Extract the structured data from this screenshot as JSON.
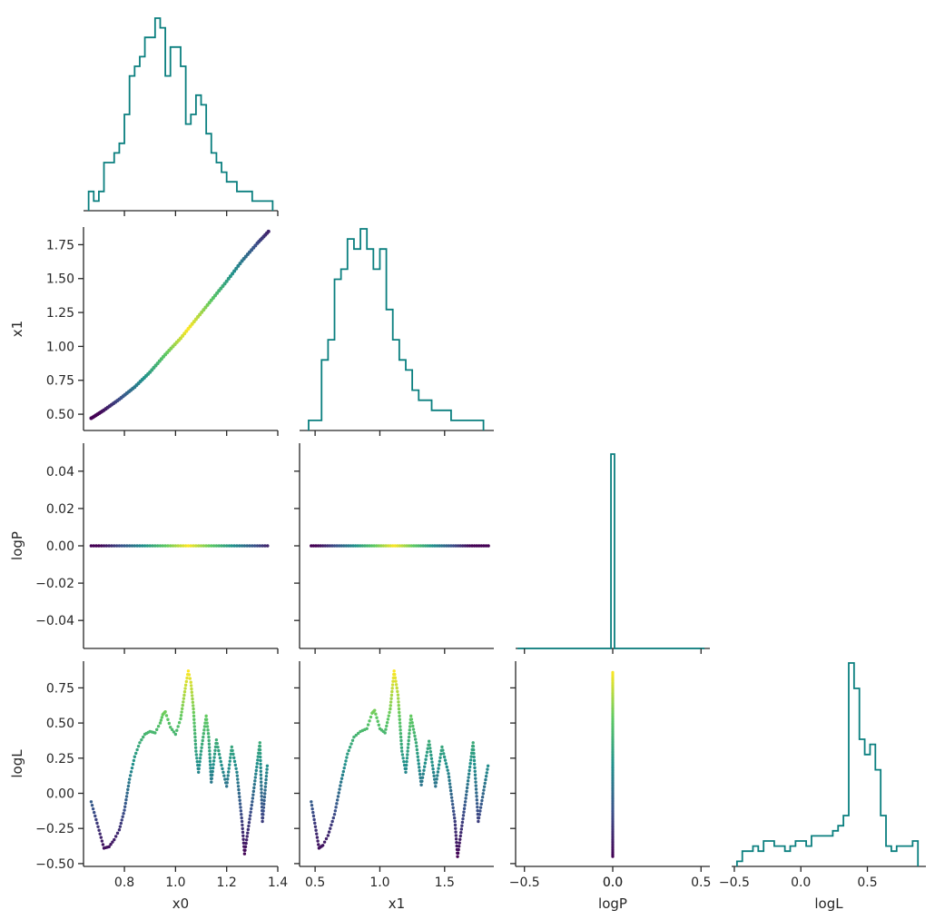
{
  "chart_data": {
    "type": "corner",
    "parameters": [
      "x0",
      "x1",
      "logP",
      "logL"
    ],
    "colors": {
      "histogram": "#0a7f7f",
      "colormap": "viridis",
      "axes": "#262626"
    },
    "ranges": {
      "x0": [
        0.64,
        1.4
      ],
      "x1": [
        0.38,
        1.88
      ],
      "logP": [
        -0.055,
        0.055
      ],
      "logL": [
        -0.52,
        0.94
      ]
    },
    "ticks": {
      "x0": {
        "values": [
          0.8,
          1.0,
          1.2,
          1.4
        ],
        "labels": [
          "0.8",
          "1.0",
          "1.2",
          "1.4"
        ]
      },
      "x1_x": {
        "values": [
          0.5,
          1.0,
          1.5
        ],
        "labels": [
          "0.5",
          "1.0",
          "1.5"
        ]
      },
      "x1_y": {
        "values": [
          0.5,
          0.75,
          1.0,
          1.25,
          1.5,
          1.75
        ],
        "labels": [
          "0.50",
          "0.75",
          "1.00",
          "1.25",
          "1.50",
          "1.75"
        ]
      },
      "logP_x": {
        "values": [
          -0.5,
          0.0,
          0.5
        ],
        "labels": [
          "−0.5",
          "0.0",
          "0.5"
        ]
      },
      "logP_y": {
        "values": [
          -0.04,
          -0.02,
          0.0,
          0.02,
          0.04
        ],
        "labels": [
          "−0.04",
          "−0.02",
          "0.00",
          "0.02",
          "0.04"
        ]
      },
      "logL_x": {
        "values": [
          -0.5,
          0.0,
          0.5
        ],
        "labels": [
          "−0.5",
          "0.0",
          "0.5"
        ]
      },
      "logL_y": {
        "values": [
          -0.5,
          -0.25,
          0.0,
          0.25,
          0.5,
          0.75
        ],
        "labels": [
          "−0.50",
          "−0.25",
          "0.00",
          "0.25",
          "0.50",
          "0.75"
        ]
      }
    },
    "axis_labels": {
      "bottom": [
        "x0",
        "x1",
        "logP",
        "logL"
      ],
      "left": [
        "x1",
        "logP",
        "logL"
      ]
    },
    "hist_x0": {
      "edges": [
        0.66,
        0.68,
        0.7,
        0.72,
        0.74,
        0.76,
        0.78,
        0.8,
        0.82,
        0.84,
        0.86,
        0.88,
        0.9,
        0.92,
        0.94,
        0.96,
        0.98,
        1.0,
        1.02,
        1.04,
        1.06,
        1.08,
        1.1,
        1.12,
        1.14,
        1.16,
        1.18,
        1.2,
        1.22,
        1.24,
        1.26,
        1.28,
        1.3,
        1.32,
        1.34,
        1.36,
        1.38
      ],
      "heights": [
        2,
        1,
        2,
        5,
        5,
        6,
        7,
        10,
        14,
        15,
        16,
        18,
        18,
        20,
        19,
        14,
        17,
        17,
        15,
        9,
        10,
        12,
        11,
        8,
        6,
        5,
        4,
        3,
        3,
        2,
        2,
        2,
        1,
        1,
        1,
        1
      ]
    },
    "hist_x1": {
      "edges": [
        0.45,
        0.5,
        0.55,
        0.6,
        0.65,
        0.7,
        0.75,
        0.8,
        0.85,
        0.9,
        0.95,
        1.0,
        1.05,
        1.1,
        1.15,
        1.2,
        1.25,
        1.3,
        1.35,
        1.4,
        1.45,
        1.5,
        1.55,
        1.6,
        1.65,
        1.7,
        1.75,
        1.8
      ],
      "heights": [
        1,
        1,
        7,
        9,
        15,
        16,
        19,
        18,
        20,
        18,
        16,
        18,
        12,
        9,
        7,
        6,
        4,
        3,
        3,
        2,
        2,
        2,
        1,
        1,
        1,
        1,
        1
      ]
    },
    "hist_logP": {
      "edges": [
        -0.54,
        -0.01,
        0.01,
        0.52
      ],
      "heights": [
        0,
        1,
        0
      ]
    },
    "hist_logL": {
      "edges": [
        -0.48,
        -0.44,
        -0.4,
        -0.36,
        -0.32,
        -0.28,
        -0.24,
        -0.2,
        -0.16,
        -0.12,
        -0.08,
        -0.04,
        0.0,
        0.04,
        0.08,
        0.12,
        0.16,
        0.2,
        0.24,
        0.28,
        0.32,
        0.36,
        0.4,
        0.44,
        0.48,
        0.52,
        0.56,
        0.6,
        0.64,
        0.68,
        0.72,
        0.76,
        0.8,
        0.84,
        0.88
      ],
      "heights": [
        1,
        3,
        3,
        4,
        3,
        5,
        5,
        4,
        4,
        3,
        4,
        5,
        5,
        4,
        6,
        6,
        6,
        6,
        7,
        8,
        10,
        40,
        35,
        25,
        22,
        24,
        19,
        10,
        4,
        3,
        4,
        4,
        4,
        5
      ]
    },
    "curve_x0_x1": [
      [
        0.67,
        0.47
      ],
      [
        0.72,
        0.53
      ],
      [
        0.78,
        0.61
      ],
      [
        0.84,
        0.7
      ],
      [
        0.9,
        0.81
      ],
      [
        0.96,
        0.94
      ],
      [
        1.02,
        1.06
      ],
      [
        1.08,
        1.2
      ],
      [
        1.14,
        1.34
      ],
      [
        1.2,
        1.48
      ],
      [
        1.26,
        1.63
      ],
      [
        1.32,
        1.76
      ],
      [
        1.37,
        1.86
      ]
    ],
    "logL_vs_x0": [
      [
        0.67,
        -0.06
      ],
      [
        0.72,
        -0.39
      ],
      [
        0.74,
        -0.38
      ],
      [
        0.76,
        -0.33
      ],
      [
        0.78,
        -0.26
      ],
      [
        0.8,
        -0.12
      ],
      [
        0.82,
        0.1
      ],
      [
        0.84,
        0.26
      ],
      [
        0.86,
        0.36
      ],
      [
        0.88,
        0.42
      ],
      [
        0.9,
        0.44
      ],
      [
        0.92,
        0.43
      ],
      [
        0.94,
        0.5
      ],
      [
        0.95,
        0.56
      ],
      [
        0.96,
        0.58
      ],
      [
        0.98,
        0.47
      ],
      [
        1.0,
        0.42
      ],
      [
        1.02,
        0.53
      ],
      [
        1.04,
        0.77
      ],
      [
        1.05,
        0.87
      ],
      [
        1.06,
        0.79
      ],
      [
        1.07,
        0.6
      ],
      [
        1.08,
        0.3
      ],
      [
        1.09,
        0.15
      ],
      [
        1.1,
        0.3
      ],
      [
        1.12,
        0.55
      ],
      [
        1.13,
        0.4
      ],
      [
        1.14,
        0.08
      ],
      [
        1.16,
        0.38
      ],
      [
        1.18,
        0.2
      ],
      [
        1.2,
        0.05
      ],
      [
        1.22,
        0.33
      ],
      [
        1.24,
        0.15
      ],
      [
        1.26,
        -0.2
      ],
      [
        1.27,
        -0.43
      ],
      [
        1.3,
        -0.06
      ],
      [
        1.33,
        0.36
      ],
      [
        1.34,
        -0.2
      ],
      [
        1.36,
        0.22
      ]
    ],
    "logL_vs_x1": [
      [
        0.47,
        -0.06
      ],
      [
        0.53,
        -0.39
      ],
      [
        0.56,
        -0.37
      ],
      [
        0.6,
        -0.3
      ],
      [
        0.65,
        -0.15
      ],
      [
        0.7,
        0.08
      ],
      [
        0.75,
        0.28
      ],
      [
        0.8,
        0.4
      ],
      [
        0.85,
        0.44
      ],
      [
        0.9,
        0.46
      ],
      [
        0.94,
        0.57
      ],
      [
        0.96,
        0.59
      ],
      [
        1.0,
        0.46
      ],
      [
        1.04,
        0.43
      ],
      [
        1.08,
        0.6
      ],
      [
        1.11,
        0.87
      ],
      [
        1.14,
        0.7
      ],
      [
        1.17,
        0.3
      ],
      [
        1.2,
        0.15
      ],
      [
        1.24,
        0.55
      ],
      [
        1.28,
        0.36
      ],
      [
        1.32,
        0.06
      ],
      [
        1.38,
        0.37
      ],
      [
        1.43,
        0.05
      ],
      [
        1.48,
        0.33
      ],
      [
        1.53,
        0.14
      ],
      [
        1.58,
        -0.2
      ],
      [
        1.6,
        -0.45
      ],
      [
        1.66,
        -0.06
      ],
      [
        1.72,
        0.36
      ],
      [
        1.76,
        -0.2
      ],
      [
        1.84,
        0.22
      ]
    ],
    "logL_vs_logP": {
      "x": 0.0,
      "range": [
        -0.45,
        0.87
      ]
    }
  }
}
